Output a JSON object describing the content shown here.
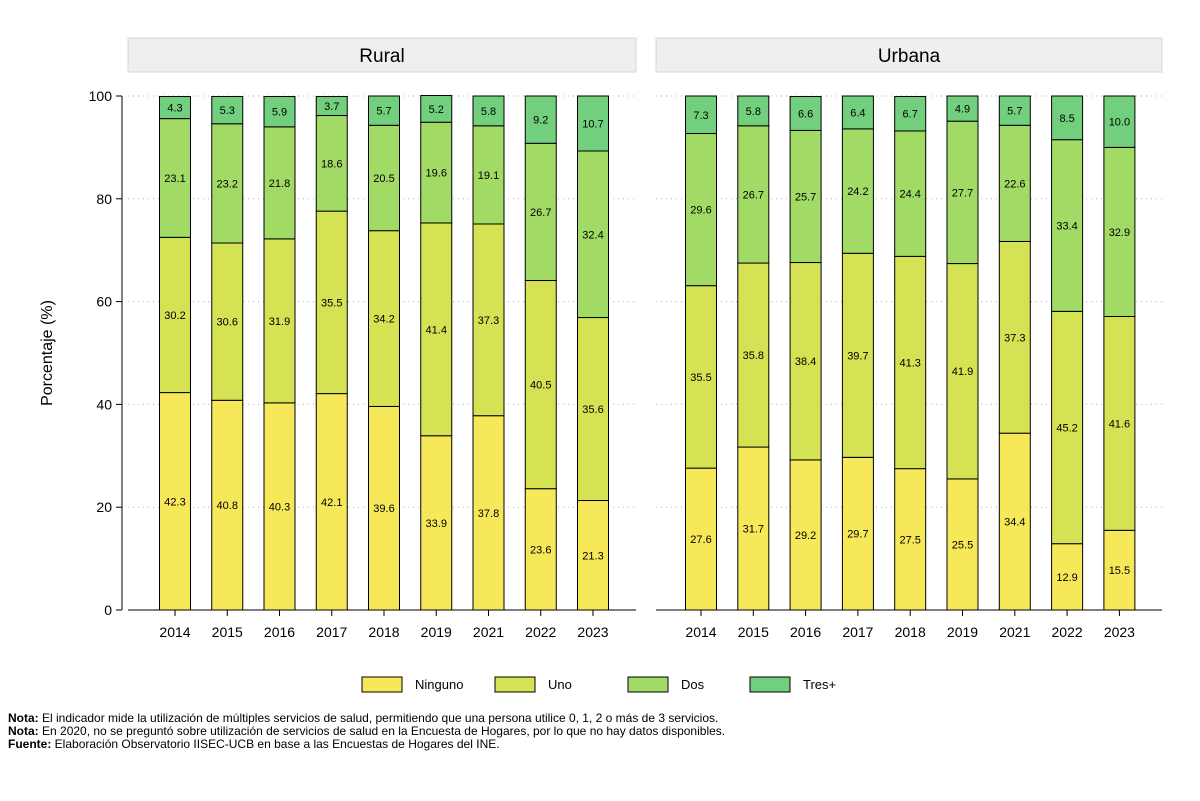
{
  "chart_data": {
    "type": "bar",
    "stacked": true,
    "ylabel": "Porcentaje (%)",
    "ylim": [
      0,
      100
    ],
    "yticks": [
      0,
      20,
      40,
      60,
      80,
      100
    ],
    "grid": true,
    "series_names": [
      "Ninguno",
      "Uno",
      "Dos",
      "Tres+"
    ],
    "colors": [
      "#f7e85a",
      "#d4e253",
      "#a2da66",
      "#72cf7e"
    ],
    "panels": [
      {
        "title": "Rural",
        "categories": [
          "2014",
          "2015",
          "2016",
          "2017",
          "2018",
          "2019",
          "2021",
          "2022",
          "2023"
        ],
        "series": [
          {
            "name": "Ninguno",
            "values": [
              42.3,
              40.8,
              40.3,
              42.1,
              39.6,
              33.9,
              37.8,
              23.6,
              21.3
            ]
          },
          {
            "name": "Uno",
            "values": [
              30.2,
              30.6,
              31.9,
              35.5,
              34.2,
              41.4,
              37.3,
              40.5,
              35.6
            ]
          },
          {
            "name": "Dos",
            "values": [
              23.1,
              23.2,
              21.8,
              18.6,
              20.5,
              19.6,
              19.1,
              26.7,
              32.4
            ]
          },
          {
            "name": "Tres+",
            "values": [
              4.3,
              5.3,
              5.9,
              3.7,
              5.7,
              5.2,
              5.8,
              9.2,
              10.7
            ]
          }
        ]
      },
      {
        "title": "Urbana",
        "categories": [
          "2014",
          "2015",
          "2016",
          "2017",
          "2018",
          "2019",
          "2021",
          "2022",
          "2023"
        ],
        "series": [
          {
            "name": "Ninguno",
            "values": [
              27.6,
              31.7,
              29.2,
              29.7,
              27.5,
              25.5,
              34.4,
              12.9,
              15.5
            ]
          },
          {
            "name": "Uno",
            "values": [
              35.5,
              35.8,
              38.4,
              39.7,
              41.3,
              41.9,
              37.3,
              45.2,
              41.6
            ]
          },
          {
            "name": "Dos",
            "values": [
              29.6,
              26.7,
              25.7,
              24.2,
              24.4,
              27.7,
              22.6,
              33.4,
              32.9
            ]
          },
          {
            "name": "Tres+",
            "values": [
              7.3,
              5.8,
              6.6,
              6.4,
              6.7,
              4.9,
              5.7,
              8.5,
              10.0
            ]
          }
        ]
      }
    ]
  },
  "notes": [
    {
      "label": "Nota:",
      "text": " El indicador mide la utilización de múltiples servicios de salud, permitiendo que una persona utilice 0, 1, 2 o más de 3 servicios."
    },
    {
      "label": "Nota:",
      "text": " En 2020, no se preguntó sobre utilización de servicios de salud en la Encuesta de Hogares, por lo que no hay datos disponibles."
    },
    {
      "label": "Fuente:",
      "text": " Elaboración Observatorio IISEC-UCB en base a las Encuestas de Hogares del INE."
    }
  ]
}
